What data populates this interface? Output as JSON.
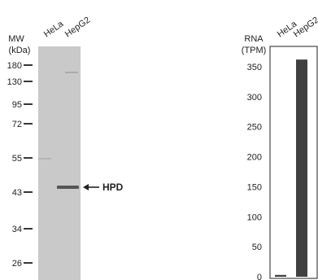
{
  "blot": {
    "lanes": [
      "HeLa",
      "HepG2"
    ],
    "mw_header": [
      "MW",
      "(kDa)"
    ],
    "markers": [
      {
        "label": "180",
        "kda": 180
      },
      {
        "label": "130",
        "kda": 130
      },
      {
        "label": "95",
        "kda": 95
      },
      {
        "label": "72",
        "kda": 72
      },
      {
        "label": "55",
        "kda": 55
      },
      {
        "label": "43",
        "kda": 43
      },
      {
        "label": "34",
        "kda": 34
      },
      {
        "label": "26",
        "kda": 26
      }
    ],
    "band_label": "HPD",
    "band_kda": 44,
    "colors": {
      "membrane": "#c9c9c9",
      "band": "#555555",
      "text": "#222222"
    }
  },
  "chart_data": {
    "type": "bar",
    "ylabel": [
      "RNA",
      "(TPM)"
    ],
    "categories": [
      "HeLa",
      "HepG2"
    ],
    "values": [
      3,
      362
    ],
    "ylim": [
      0,
      350
    ],
    "yticks": [
      "0",
      "50",
      "100",
      "150",
      "200",
      "250",
      "300",
      "350"
    ],
    "grid": false,
    "bar_color": "#404040"
  }
}
